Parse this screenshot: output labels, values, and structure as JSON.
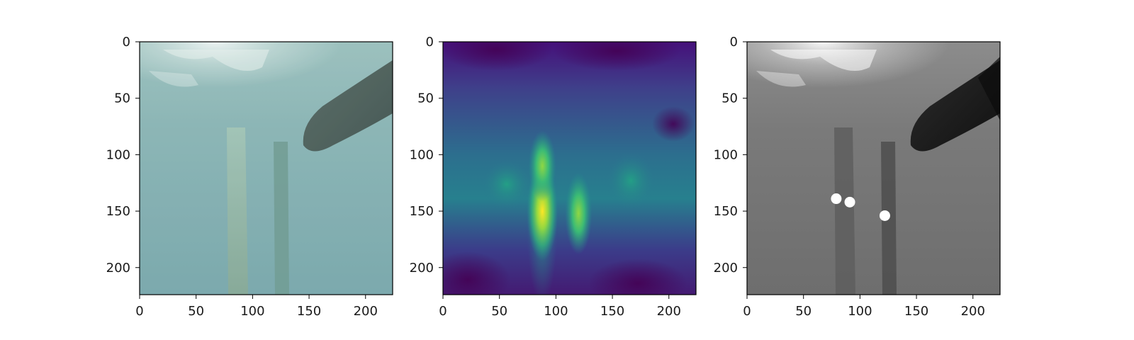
{
  "chart_data": [
    {
      "type": "image",
      "content": "underwater photograph: two vertical dock pilings, boat hull upper-right, sunlit surface at top",
      "colormap": "natural-rgb",
      "xlim": [
        0,
        224
      ],
      "ylim": [
        224,
        0
      ],
      "xticks": [
        0,
        50,
        100,
        150,
        200
      ],
      "yticks": [
        0,
        50,
        100,
        150,
        200
      ],
      "xlabel": "",
      "ylabel": ""
    },
    {
      "type": "heatmap",
      "colormap": "viridis",
      "xlim": [
        0,
        224
      ],
      "ylim": [
        224,
        0
      ],
      "xticks": [
        0,
        50,
        100,
        150,
        200
      ],
      "yticks": [
        0,
        50,
        100,
        150,
        200
      ],
      "hotspots": [
        {
          "x": 88,
          "y": 150,
          "intensity": 1.0
        },
        {
          "x": 88,
          "y": 110,
          "intensity": 0.75
        },
        {
          "x": 120,
          "y": 152,
          "intensity": 0.7
        }
      ],
      "xlabel": "",
      "ylabel": ""
    },
    {
      "type": "scatter",
      "background": "grayscale version of the underwater photograph",
      "marker_color": "#ffffff",
      "xlim": [
        0,
        224
      ],
      "ylim": [
        224,
        0
      ],
      "xticks": [
        0,
        50,
        100,
        150,
        200
      ],
      "yticks": [
        0,
        50,
        100,
        150,
        200
      ],
      "points": [
        {
          "x": 79,
          "y": 139
        },
        {
          "x": 91,
          "y": 142
        },
        {
          "x": 122,
          "y": 154
        }
      ],
      "xlabel": "",
      "ylabel": ""
    }
  ]
}
